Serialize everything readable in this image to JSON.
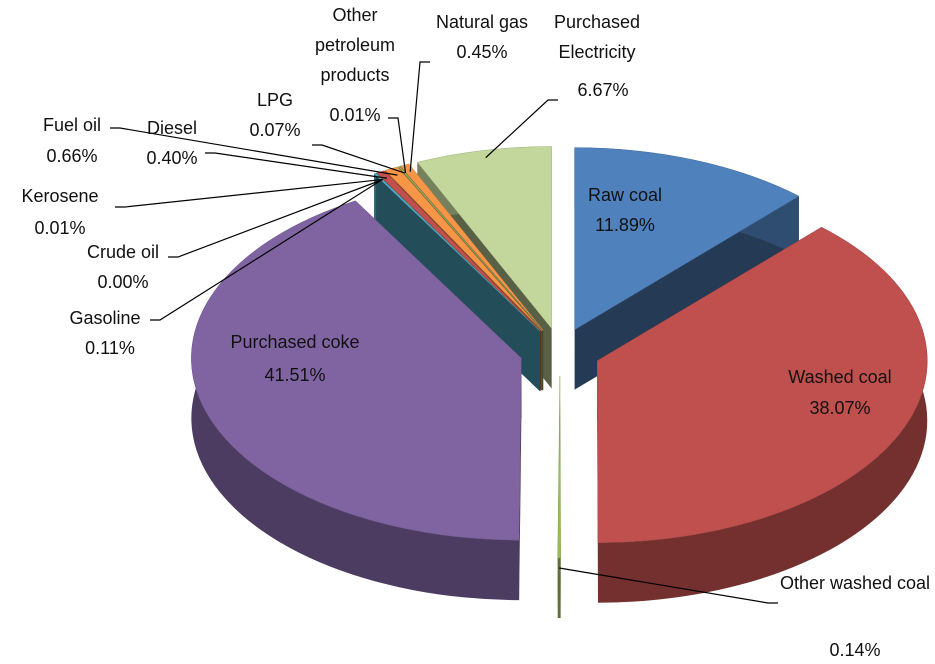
{
  "chart_data": {
    "type": "pie",
    "categories": [
      "Raw coal",
      "Washed coal",
      "Other washed coal",
      "Purchased  coke",
      "Gasoline",
      "Crude oil",
      "Kerosene",
      "Diesel",
      "Fuel oil",
      "LPG",
      "Other petroleum products",
      "Natural gas",
      "Purchased Electricity"
    ],
    "values": [
      11.89,
      38.07,
      0.14,
      41.51,
      0.11,
      0.0,
      0.01,
      0.4,
      0.66,
      0.07,
      0.01,
      0.45,
      6.67
    ],
    "value_labels": [
      "11.89%",
      "38.07%",
      "0.14%",
      "41.51%",
      "0.11%",
      "0.00%",
      "0.01%",
      "0.40%",
      "0.66%",
      "0.07%",
      "0.01%",
      "0.45%",
      "6.67%"
    ],
    "colors": [
      "#4f81bd",
      "#c0504d",
      "#9bbb59",
      "#8064a2",
      "#4bacc6",
      "#f79646",
      "#2c4d75",
      "#c0504d",
      "#f79646",
      "#9bbb59",
      "#8064a2",
      "#f79646",
      "#c3d69b"
    ]
  }
}
